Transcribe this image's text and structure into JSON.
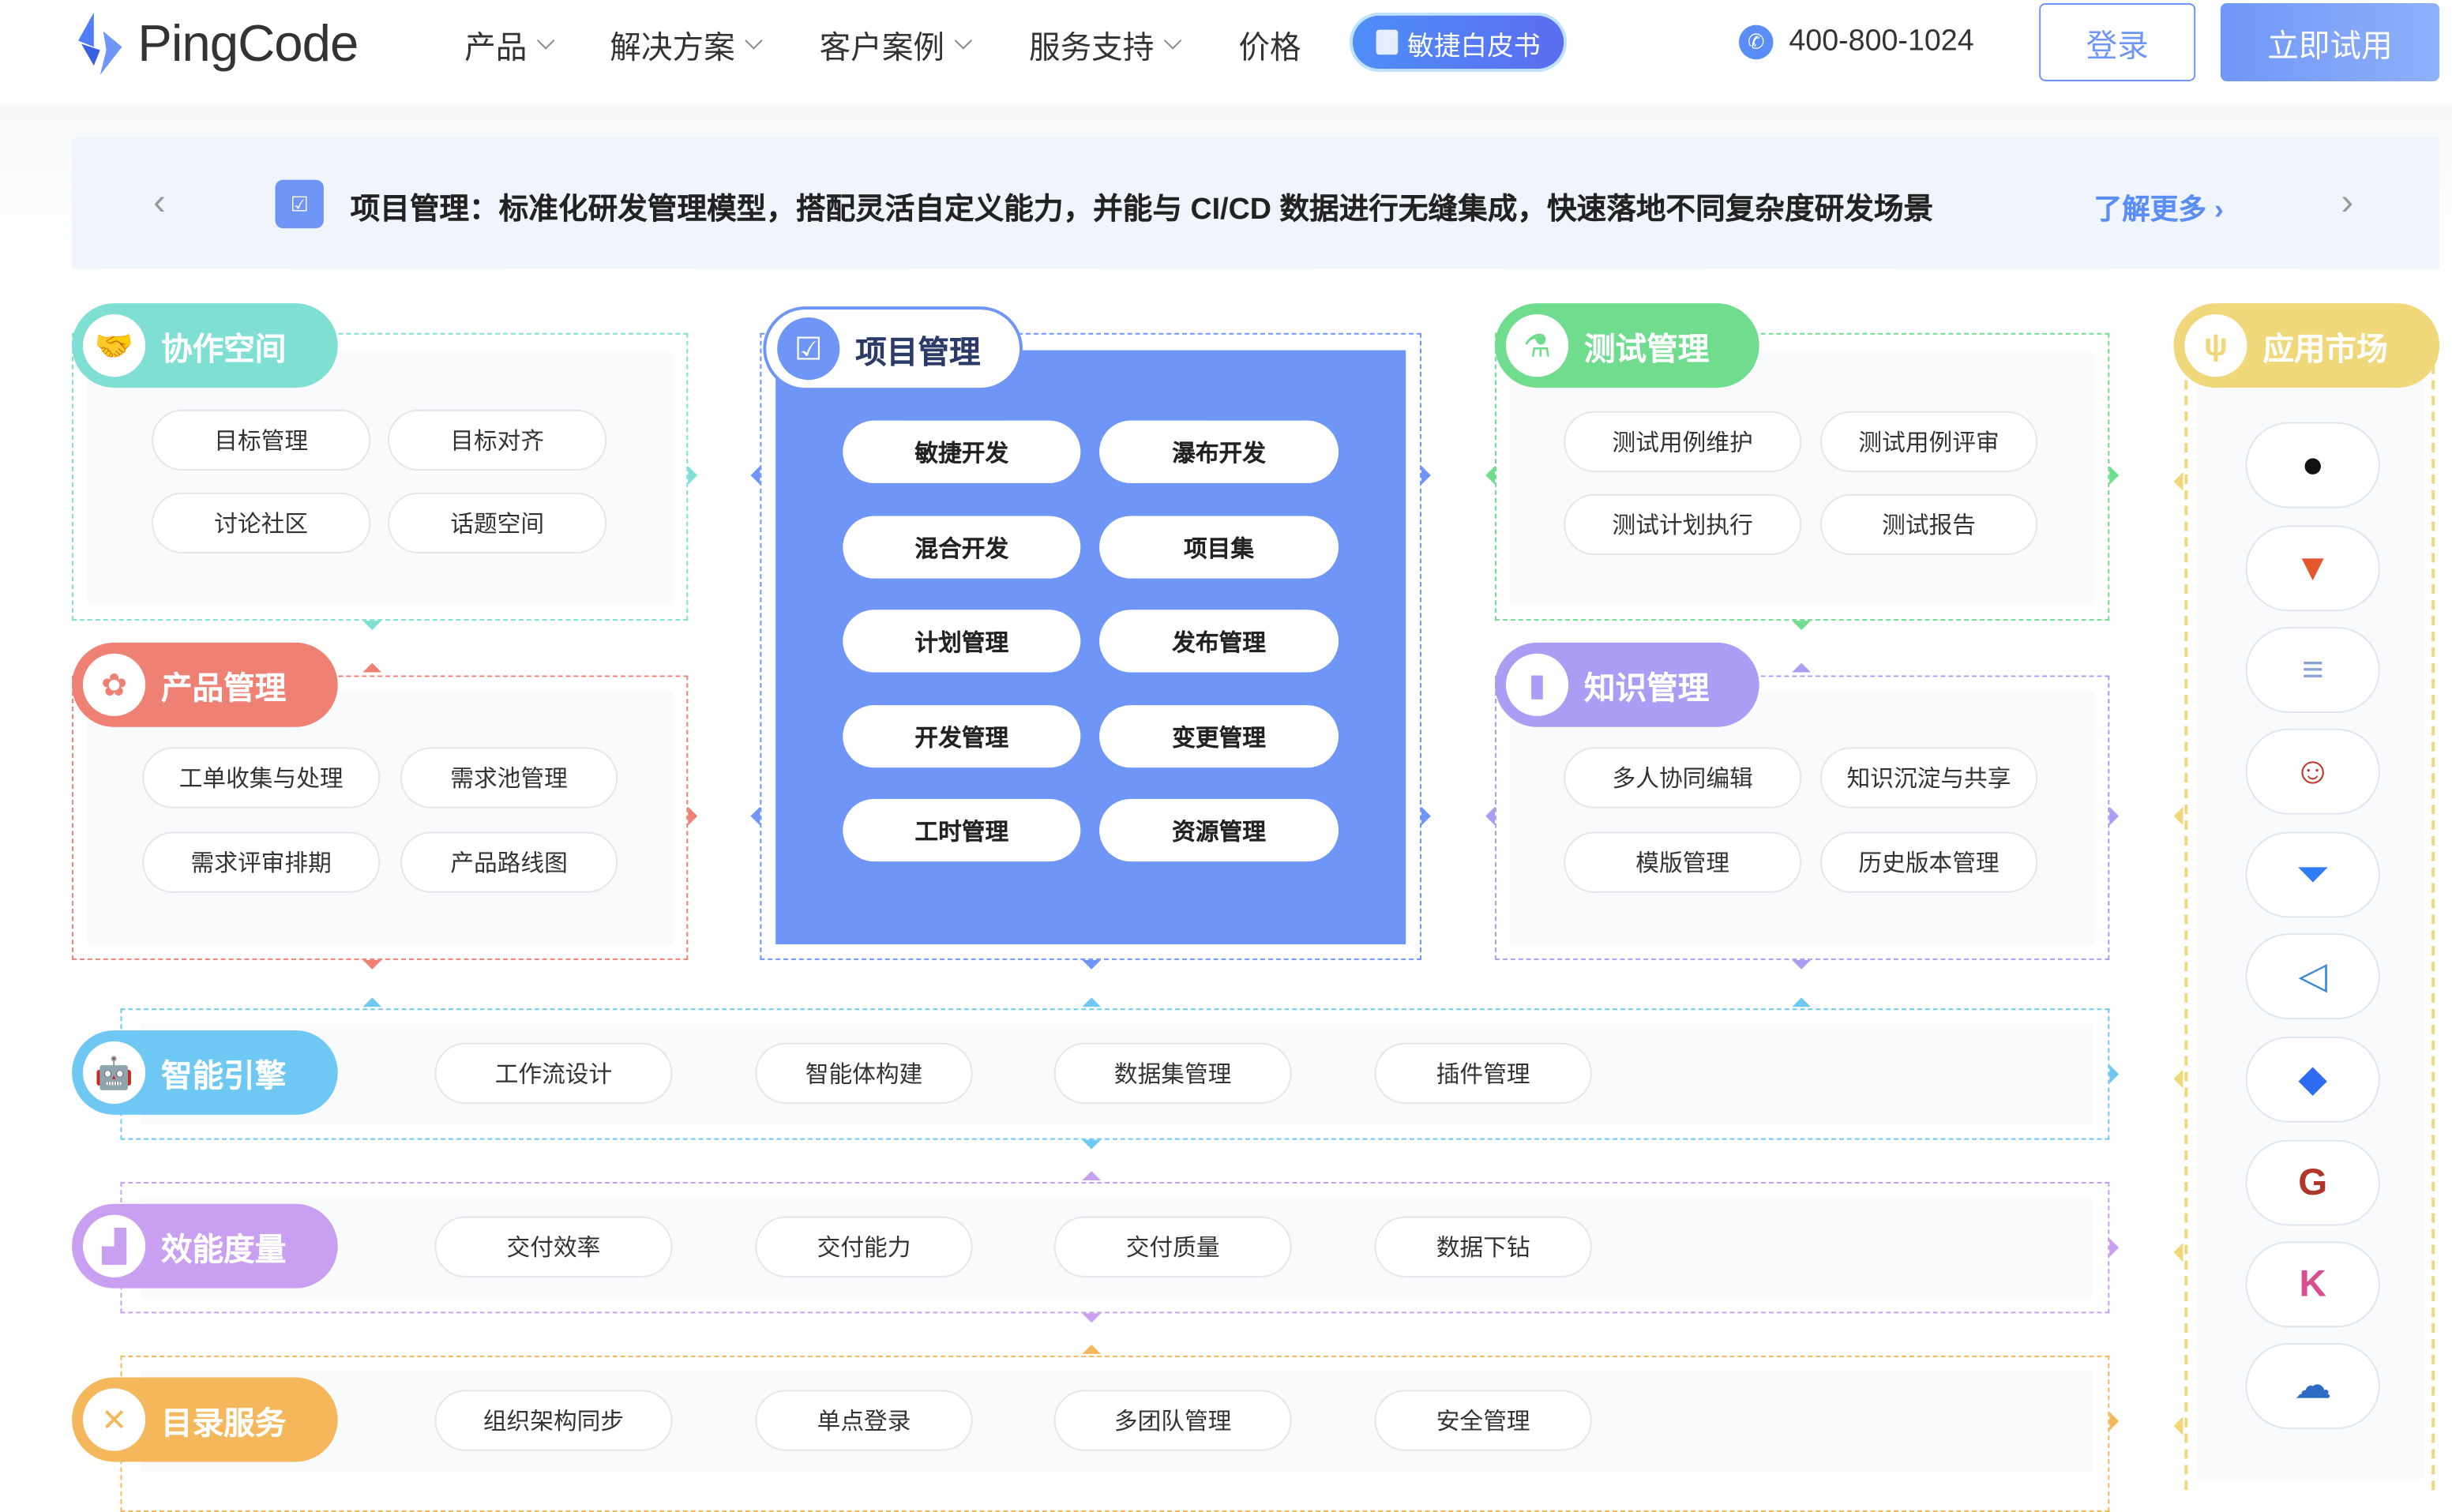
{
  "header": {
    "logo_text": "PingCode",
    "nav": [
      {
        "label": "产品",
        "dropdown": true
      },
      {
        "label": "解决方案",
        "dropdown": true
      },
      {
        "label": "客户案例",
        "dropdown": true
      },
      {
        "label": "服务支持",
        "dropdown": true
      },
      {
        "label": "价格",
        "dropdown": false
      }
    ],
    "whitepaper_label": "敏捷白皮书",
    "phone": "400-800-1024",
    "login_label": "登录",
    "trial_label": "立即试用"
  },
  "banner": {
    "text": "项目管理：标准化研发管理模型，搭配灵活自定义能力，并能与 CI/CD 数据进行无缝集成，快速落地不同复杂度研发场景",
    "more_label": "了解更多",
    "prev_icon": "chevron-left",
    "next_icon": "chevron-right"
  },
  "modules": {
    "collab": {
      "title": "协作空间",
      "color": "#7edfd2",
      "icon": "handshake",
      "items": [
        "目标管理",
        "目标对齐",
        "讨论社区",
        "话题空间"
      ]
    },
    "product": {
      "title": "产品管理",
      "color": "#ef8074",
      "icon": "grid-flower",
      "items": [
        "工单收集与处理",
        "需求池管理",
        "需求评审排期",
        "产品路线图"
      ]
    },
    "project": {
      "title": "项目管理",
      "color": "#6f95f7",
      "icon": "checklist",
      "items": [
        "敏捷开发",
        "瀑布开发",
        "混合开发",
        "项目集",
        "计划管理",
        "发布管理",
        "开发管理",
        "变更管理",
        "工时管理",
        "资源管理"
      ]
    },
    "testing": {
      "title": "测试管理",
      "color": "#6fdc8e",
      "icon": "flask",
      "items": [
        "测试用例维护",
        "测试用例评审",
        "测试计划执行",
        "测试报告"
      ]
    },
    "knowledge": {
      "title": "知识管理",
      "color": "#a99ef4",
      "icon": "book",
      "items": [
        "多人协同编辑",
        "知识沉淀与共享",
        "模版管理",
        "历史版本管理"
      ]
    },
    "market": {
      "title": "应用市场",
      "color": "#efd77a",
      "icon": "plug",
      "apps": [
        "github",
        "gitlab",
        "subversion",
        "jenkins",
        "bitbucket",
        "vscode",
        "jira",
        "gerrit",
        "kibana",
        "cloud"
      ]
    },
    "ai": {
      "title": "智能引擎",
      "color": "#6fc8f3",
      "icon": "robot",
      "items": [
        "工作流设计",
        "智能体构建",
        "数据集管理",
        "插件管理"
      ]
    },
    "metrics": {
      "title": "效能度量",
      "color": "#c99ff1",
      "icon": "bar-chart",
      "items": [
        "交付效率",
        "交付能力",
        "交付质量",
        "数据下钻"
      ]
    },
    "directory": {
      "title": "目录服务",
      "color": "#f4b75c",
      "icon": "tools",
      "items": [
        "组织架构同步",
        "单点登录",
        "多团队管理",
        "安全管理"
      ]
    }
  }
}
